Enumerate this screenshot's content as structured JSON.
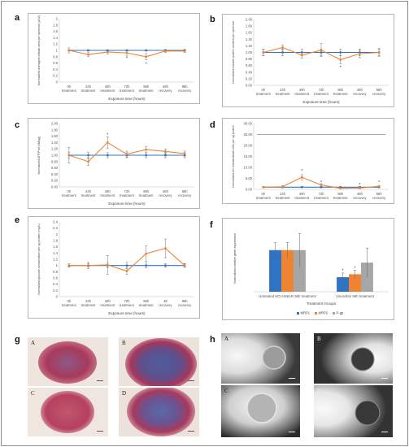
{
  "figure": {
    "panel_labels": [
      "a",
      "b",
      "c",
      "d",
      "e",
      "f",
      "g",
      "h"
    ],
    "subpanel_labels": [
      "A",
      "B",
      "C",
      "D"
    ]
  },
  "chart_data": [
    {
      "id": "a",
      "type": "line",
      "ylabel": "Normalized averaged cellular area per spheroid (µm2)",
      "xlabel": "Exposure time (hours)",
      "categories": [
        "0h treatment",
        "24h treatment",
        "48h treatment",
        "72h treatment",
        "96h treatment",
        "48h recovery",
        "96h recovery"
      ],
      "ylim": [
        0,
        2
      ],
      "yticks": [
        0,
        0.2,
        0.4,
        0.6,
        0.8,
        1,
        1.2,
        1.4,
        1.6,
        1.8,
        2
      ],
      "series": [
        {
          "color": "#2f74c4",
          "values": [
            1,
            1,
            1,
            1,
            1,
            1,
            1
          ],
          "err": [
            0.02,
            0.02,
            0.02,
            0.02,
            0.02,
            0.02,
            0.02
          ]
        },
        {
          "color": "#ee8333",
          "values": [
            1.0,
            0.87,
            0.95,
            0.92,
            0.8,
            0.98,
            0.98
          ],
          "err": [
            0.08,
            0.06,
            0.07,
            0.1,
            0.1,
            0.05,
            0.05
          ]
        }
      ],
      "stars": [
        [
          3,
          0.76
        ],
        [
          4,
          0.58
        ]
      ]
    },
    {
      "id": "b",
      "type": "line",
      "ylabel": "Normalized soluble protein content per spheroid",
      "xlabel": "Exposure time (hours)",
      "categories": [
        "0h treatment",
        "24h treatment",
        "48h treatment",
        "72h treatment",
        "96h treatment",
        "48h recovery",
        "96h recovery"
      ],
      "ylim": [
        0,
        2
      ],
      "yticks": [
        0,
        0.2,
        0.4,
        0.6,
        0.8,
        1,
        1.2,
        1.4,
        1.6,
        1.8,
        2
      ],
      "ytick_format": "2dp",
      "series": [
        {
          "color": "#2f74c4",
          "values": [
            1,
            1,
            1,
            1,
            1,
            1,
            1
          ],
          "err": [
            0.1,
            0.1,
            0.1,
            0.1,
            0.1,
            0.1,
            0.1
          ]
        },
        {
          "color": "#ee8333",
          "values": [
            1.0,
            1.15,
            0.92,
            1.07,
            0.78,
            0.96,
            1.0
          ],
          "err": [
            0.1,
            0.08,
            0.1,
            0.2,
            0.12,
            0.12,
            0.12
          ]
        }
      ],
      "stars": [
        [
          4,
          0.55
        ]
      ]
    },
    {
      "id": "c",
      "type": "line",
      "ylabel": "Normalized ATP/Prot (nM/µg)",
      "xlabel": "Exposure time (hours)",
      "categories": [
        "0h treatment",
        "24h treatment",
        "48h treatment",
        "72h treatment",
        "96h treatment",
        "48h recovery",
        "96h recovery"
      ],
      "ylim": [
        0,
        2
      ],
      "yticks": [
        0,
        0.2,
        0.4,
        0.6,
        0.8,
        1,
        1.2,
        1.4,
        1.6,
        1.8,
        2
      ],
      "ytick_format": "2dp",
      "series": [
        {
          "color": "#2f74c4",
          "values": [
            1,
            1,
            1,
            1,
            1,
            1,
            1
          ],
          "err": [
            0.1,
            0.1,
            0.08,
            0.08,
            0.08,
            0.08,
            0.08
          ]
        },
        {
          "color": "#ee8333",
          "values": [
            1.0,
            0.8,
            1.4,
            1.03,
            1.18,
            1.12,
            1.05
          ],
          "err": [
            0.25,
            0.12,
            0.18,
            0.1,
            0.1,
            0.08,
            0.08
          ]
        }
      ],
      "stars": [
        [
          2,
          1.65
        ]
      ]
    },
    {
      "id": "d",
      "type": "line",
      "ylabel": "Normalized Ah release/dead cells per ug protein",
      "xlabel": "",
      "categories": [
        "0h treatment",
        "24h treatment",
        "48h treatment",
        "72h treatment",
        "96h treatment",
        "48h recovery",
        "96h recovery"
      ],
      "ylim": [
        0,
        30
      ],
      "yticks": [
        0,
        5,
        10,
        15,
        20,
        25,
        30
      ],
      "ytick_format": "2dp",
      "hline": 25,
      "series": [
        {
          "color": "#2f74c4",
          "values": [
            1,
            1,
            1,
            1,
            1,
            1,
            1
          ],
          "err": [
            0.2,
            0.2,
            0.2,
            0.2,
            0.2,
            0.2,
            0.2
          ]
        },
        {
          "color": "#ee8333",
          "values": [
            1.0,
            1.2,
            5.5,
            2.0,
            0.5,
            0.6,
            1.4
          ],
          "err": [
            0.3,
            0.5,
            1.2,
            0.6,
            0.2,
            0.3,
            0.4
          ]
        }
      ],
      "stars": [
        [
          2,
          8.5
        ],
        [
          3,
          3.4
        ],
        [
          5,
          2.2
        ],
        [
          6,
          3.4
        ]
      ]
    },
    {
      "id": "e",
      "type": "line",
      "ylabel": "Normalized glucose consumption per ug protein (mg/L)",
      "xlabel": "Exposure time (hours)",
      "categories": [
        "0h treatment",
        "24h treatment",
        "48h treatment",
        "72h treatment",
        "96h treatment",
        "48 recovery",
        "96h recovery"
      ],
      "ylim": [
        0,
        2.4
      ],
      "yticks": [
        0,
        0.2,
        0.4,
        0.6,
        0.8,
        1,
        1.2,
        1.4,
        1.6,
        1.8,
        2,
        2.2,
        2.4
      ],
      "series": [
        {
          "color": "#2f74c4",
          "values": [
            1,
            1,
            1,
            1,
            1,
            1,
            1
          ],
          "err": [
            0.05,
            0.05,
            0.08,
            0.1,
            0.08,
            0.06,
            0.06
          ]
        },
        {
          "color": "#ee8333",
          "values": [
            1.0,
            1.0,
            1.02,
            0.82,
            1.38,
            1.55,
            1.0
          ],
          "err": [
            0.05,
            0.1,
            0.3,
            0.1,
            0.25,
            0.3,
            0.05
          ]
        }
      ],
      "stars": []
    },
    {
      "id": "f",
      "type": "bar",
      "ylabel": "Normalized relative gene expression",
      "xlabel": "Treatment Groups",
      "categories": [
        "Untreated NCI-H69AR 96h treatment",
        "Vinorelbin 96h treatment"
      ],
      "ylim": [
        0,
        1.6
      ],
      "series": [
        {
          "name": "MRP1",
          "color": "#2f74c4",
          "values": [
            1.0,
            0.35
          ],
          "err": [
            0.18,
            0.1
          ]
        },
        {
          "name": "MRP2",
          "color": "#ee8333",
          "values": [
            1.0,
            0.42
          ],
          "err": [
            0.18,
            0.1
          ]
        },
        {
          "name": "P-gp",
          "color": "#a6a6a6",
          "values": [
            1.0,
            0.7
          ],
          "err": [
            0.4,
            0.35
          ]
        }
      ],
      "stars": [
        [
          1,
          0,
          0.52
        ],
        [
          1,
          1,
          0.58
        ]
      ]
    }
  ]
}
